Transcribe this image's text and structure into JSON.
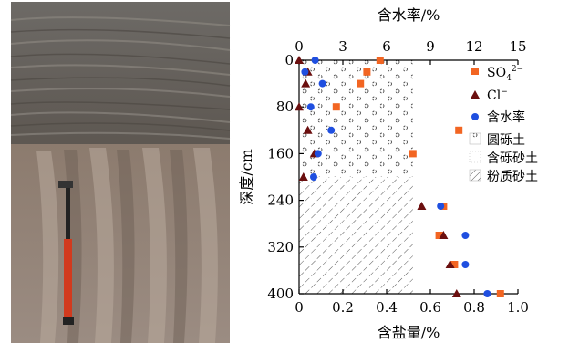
{
  "chart_data": {
    "type": "scatter",
    "title": "",
    "xlabel_bottom": "含盐量/%",
    "xlabel_top": "含水率/%",
    "ylabel": "深度/cm",
    "xlim_bottom": [
      0,
      1.0
    ],
    "xlim_top": [
      0,
      15
    ],
    "ylim": [
      0,
      400
    ],
    "y_inverted": true,
    "x_ticks_bottom": [
      "0",
      "0.2",
      "0.4",
      "0.6",
      "0.8",
      "1.0"
    ],
    "x_ticks_top": [
      "0",
      "3",
      "6",
      "9",
      "12",
      "15"
    ],
    "y_ticks": [
      "0",
      "80",
      "160",
      "240",
      "320",
      "400"
    ],
    "grid": false,
    "legend_placement": "right",
    "colors": {
      "so4": "#f26522",
      "cl": "#6b0f0f",
      "water": "#1f4fe0"
    },
    "legend": {
      "so4_label": "SO",
      "so4_sub": "4",
      "so4_sup": "2−",
      "cl_label": "Cl",
      "cl_sup": "−",
      "water_label": "含水率",
      "gravel_label": "圆砾土",
      "gravelsand_label": "含砾砂土",
      "siltsand_label": "粉质砂土"
    },
    "strata": [
      {
        "name": "圆砾土",
        "from": 0,
        "to": 200
      },
      {
        "name": "粉质砂土",
        "from": 200,
        "to": 400
      }
    ],
    "series": [
      {
        "name": "SO42−",
        "axis": "bottom",
        "points": [
          {
            "x": 0.37,
            "y": 0
          },
          {
            "x": 0.31,
            "y": 20
          },
          {
            "x": 0.28,
            "y": 40
          },
          {
            "x": 0.17,
            "y": 80
          },
          {
            "x": 0.73,
            "y": 120
          },
          {
            "x": 0.52,
            "y": 160
          },
          {
            "x": 0.66,
            "y": 250
          },
          {
            "x": 0.64,
            "y": 300
          },
          {
            "x": 0.71,
            "y": 350
          },
          {
            "x": 0.92,
            "y": 400
          }
        ]
      },
      {
        "name": "Cl−",
        "axis": "bottom",
        "points": [
          {
            "x": 0.0,
            "y": 0
          },
          {
            "x": 0.04,
            "y": 20
          },
          {
            "x": 0.03,
            "y": 40
          },
          {
            "x": 0.0,
            "y": 80
          },
          {
            "x": 0.04,
            "y": 120
          },
          {
            "x": 0.07,
            "y": 160
          },
          {
            "x": 0.02,
            "y": 200
          },
          {
            "x": 0.56,
            "y": 250
          },
          {
            "x": 0.66,
            "y": 300
          },
          {
            "x": 0.69,
            "y": 350
          },
          {
            "x": 0.72,
            "y": 400
          }
        ]
      },
      {
        "name": "含水率",
        "axis": "top",
        "points": [
          {
            "x": 1.1,
            "y": 0
          },
          {
            "x": 0.4,
            "y": 20
          },
          {
            "x": 1.6,
            "y": 40
          },
          {
            "x": 0.8,
            "y": 80
          },
          {
            "x": 2.2,
            "y": 120
          },
          {
            "x": 1.3,
            "y": 160
          },
          {
            "x": 1.0,
            "y": 200
          },
          {
            "x": 9.7,
            "y": 250
          },
          {
            "x": 11.4,
            "y": 300
          },
          {
            "x": 11.4,
            "y": 350
          },
          {
            "x": 12.9,
            "y": 400
          }
        ]
      }
    ]
  }
}
